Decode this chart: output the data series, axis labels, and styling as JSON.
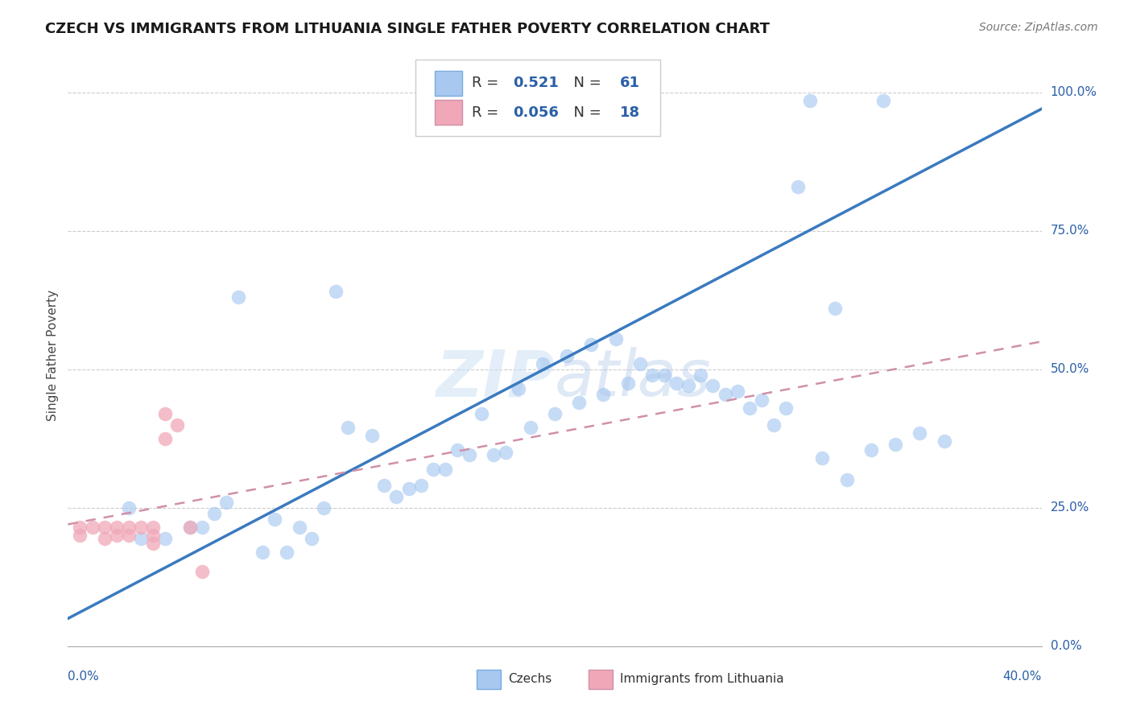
{
  "title": "CZECH VS IMMIGRANTS FROM LITHUANIA SINGLE FATHER POVERTY CORRELATION CHART",
  "source": "Source: ZipAtlas.com",
  "ylabel": "Single Father Poverty",
  "ytick_vals": [
    0.0,
    0.25,
    0.5,
    0.75,
    1.0
  ],
  "ytick_labels": [
    "0.0%",
    "25.0%",
    "50.0%",
    "75.0%",
    "100.0%"
  ],
  "xlim": [
    0.0,
    0.4
  ],
  "ylim": [
    0.0,
    1.05
  ],
  "r1_val": "0.521",
  "n1_val": "61",
  "r2_val": "0.056",
  "n2_val": "18",
  "blue_scatter_color": "#a8c8f0",
  "pink_scatter_color": "#f0a8b8",
  "blue_line_color": "#3a7abf",
  "pink_line_color": "#d090a8",
  "legend_text_color": "#2a5fa8",
  "watermark": "ZIPatlas",
  "czechs_x": [
    0.335,
    0.305,
    0.025,
    0.055,
    0.065,
    0.03,
    0.085,
    0.095,
    0.105,
    0.125,
    0.135,
    0.145,
    0.155,
    0.17,
    0.185,
    0.195,
    0.205,
    0.215,
    0.225,
    0.235,
    0.245,
    0.255,
    0.265,
    0.275,
    0.285,
    0.295,
    0.315,
    0.04,
    0.05,
    0.06,
    0.08,
    0.09,
    0.1,
    0.115,
    0.165,
    0.175,
    0.19,
    0.2,
    0.21,
    0.22,
    0.23,
    0.24,
    0.25,
    0.26,
    0.27,
    0.28,
    0.29,
    0.3,
    0.31,
    0.32,
    0.33,
    0.34,
    0.35,
    0.36,
    0.07,
    0.11,
    0.13,
    0.14,
    0.15,
    0.16,
    0.18
  ],
  "czechs_y": [
    0.985,
    0.985,
    0.25,
    0.215,
    0.26,
    0.195,
    0.23,
    0.215,
    0.25,
    0.38,
    0.27,
    0.29,
    0.32,
    0.42,
    0.465,
    0.51,
    0.525,
    0.545,
    0.555,
    0.51,
    0.49,
    0.47,
    0.47,
    0.46,
    0.445,
    0.43,
    0.61,
    0.195,
    0.215,
    0.24,
    0.17,
    0.17,
    0.195,
    0.395,
    0.345,
    0.345,
    0.395,
    0.42,
    0.44,
    0.455,
    0.475,
    0.49,
    0.475,
    0.49,
    0.455,
    0.43,
    0.4,
    0.83,
    0.34,
    0.3,
    0.355,
    0.365,
    0.385,
    0.37,
    0.63,
    0.64,
    0.29,
    0.285,
    0.32,
    0.355,
    0.35
  ],
  "lith_x": [
    0.005,
    0.005,
    0.01,
    0.015,
    0.015,
    0.02,
    0.02,
    0.025,
    0.025,
    0.03,
    0.035,
    0.035,
    0.035,
    0.04,
    0.04,
    0.045,
    0.05,
    0.055
  ],
  "lith_y": [
    0.215,
    0.2,
    0.215,
    0.215,
    0.195,
    0.215,
    0.2,
    0.215,
    0.2,
    0.215,
    0.215,
    0.2,
    0.185,
    0.42,
    0.375,
    0.4,
    0.215,
    0.135
  ]
}
